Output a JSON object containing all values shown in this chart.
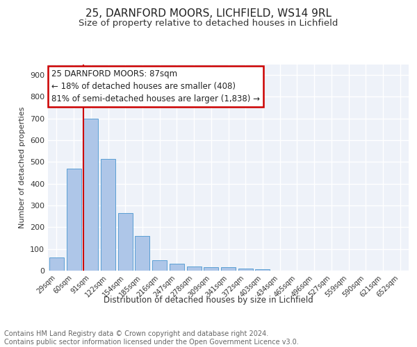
{
  "title1": "25, DARNFORD MOORS, LICHFIELD, WS14 9RL",
  "title2": "Size of property relative to detached houses in Lichfield",
  "xlabel": "Distribution of detached houses by size in Lichfield",
  "ylabel": "Number of detached properties",
  "bar_labels": [
    "29sqm",
    "60sqm",
    "91sqm",
    "122sqm",
    "154sqm",
    "185sqm",
    "216sqm",
    "247sqm",
    "278sqm",
    "309sqm",
    "341sqm",
    "372sqm",
    "403sqm",
    "434sqm",
    "465sqm",
    "496sqm",
    "527sqm",
    "559sqm",
    "590sqm",
    "621sqm",
    "652sqm"
  ],
  "bar_values": [
    60,
    470,
    700,
    515,
    265,
    160,
    47,
    32,
    20,
    15,
    15,
    8,
    5,
    0,
    0,
    0,
    0,
    0,
    0,
    0,
    0
  ],
  "bar_color": "#aec6e8",
  "bar_edge_color": "#5a9fd4",
  "vline_color": "#cc0000",
  "annotation_text": "25 DARNFORD MOORS: 87sqm\n← 18% of detached houses are smaller (408)\n81% of semi-detached houses are larger (1,838) →",
  "annotation_box_color": "#cc0000",
  "ylim": [
    0,
    950
  ],
  "yticks": [
    0,
    100,
    200,
    300,
    400,
    500,
    600,
    700,
    800,
    900
  ],
  "footer_text": "Contains HM Land Registry data © Crown copyright and database right 2024.\nContains public sector information licensed under the Open Government Licence v3.0.",
  "bg_color": "#eef2f9",
  "grid_color": "#ffffff",
  "title1_fontsize": 11,
  "title2_fontsize": 9.5,
  "annotation_fontsize": 8.5,
  "footer_fontsize": 7,
  "ylabel_fontsize": 8,
  "xlabel_fontsize": 8.5
}
